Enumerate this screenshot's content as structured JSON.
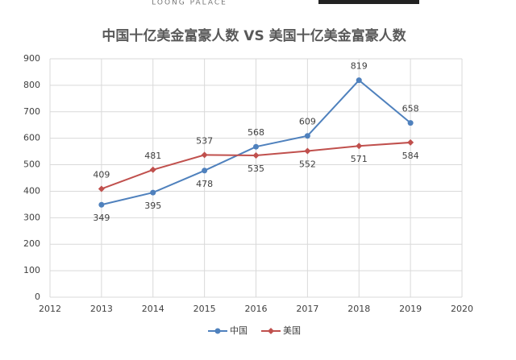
{
  "brand": "LOONG PALACE",
  "chart_data": {
    "type": "line",
    "title": "中国十亿美金富豪人数 VS 美国十亿美金富豪人数",
    "x": [
      2013,
      2014,
      2015,
      2016,
      2017,
      2018,
      2019
    ],
    "series": [
      {
        "name": "中国",
        "color": "#4f81bd",
        "values": [
          349,
          395,
          478,
          568,
          609,
          819,
          658
        ]
      },
      {
        "name": "美国",
        "color": "#c0504d",
        "values": [
          409,
          481,
          537,
          535,
          552,
          571,
          584
        ]
      }
    ],
    "xlim": [
      2012,
      2020
    ],
    "xticks": [
      2012,
      2013,
      2014,
      2015,
      2016,
      2017,
      2018,
      2019,
      2020
    ],
    "ylim": [
      0,
      900
    ],
    "yticks": [
      0,
      100,
      200,
      300,
      400,
      500,
      600,
      700,
      800,
      900
    ],
    "grid": true,
    "legend": "bottom"
  }
}
